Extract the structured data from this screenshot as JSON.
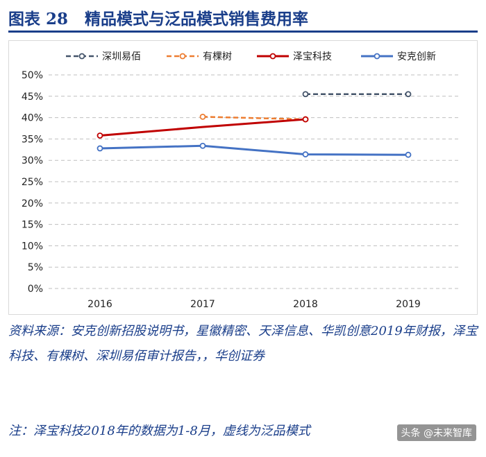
{
  "header": {
    "figure_label": "图表 28",
    "title": "精品模式与泛品模式销售费用率"
  },
  "chart_data": {
    "type": "line",
    "title": "精品模式与泛品模式销售费用率",
    "categories": [
      "2016",
      "2017",
      "2018",
      "2019"
    ],
    "yticks": [
      "0%",
      "5%",
      "10%",
      "15%",
      "20%",
      "25%",
      "30%",
      "35%",
      "40%",
      "45%",
      "50%"
    ],
    "ylim": [
      0,
      50
    ],
    "y_unit": "%",
    "grid": true,
    "legend_position": "top",
    "series": [
      {
        "name": "深圳易佰",
        "color": "#44546a",
        "dashed": true,
        "values": [
          null,
          null,
          45.5,
          45.5
        ]
      },
      {
        "name": "有棵树",
        "color": "#ed7d31",
        "dashed": true,
        "values": [
          null,
          40.2,
          39.6,
          null
        ]
      },
      {
        "name": "泽宝科技",
        "color": "#c00000",
        "dashed": false,
        "values": [
          35.8,
          37.8,
          39.6,
          null
        ]
      },
      {
        "name": "安克创新",
        "color": "#4472c4",
        "dashed": false,
        "values": [
          32.8,
          33.4,
          31.4,
          31.3
        ]
      }
    ]
  },
  "source": {
    "text": "资料来源：安克创新招股说明书，星徽精密、天泽信息、华凯创意2019年财报，泽宝科技、有棵树、深圳易佰审计报告，，华创证券"
  },
  "note": {
    "text": "注：泽宝科技2018年的数据为1-8月，虚线为泛品模式"
  },
  "watermark": {
    "text": "头条 @未来智库"
  }
}
